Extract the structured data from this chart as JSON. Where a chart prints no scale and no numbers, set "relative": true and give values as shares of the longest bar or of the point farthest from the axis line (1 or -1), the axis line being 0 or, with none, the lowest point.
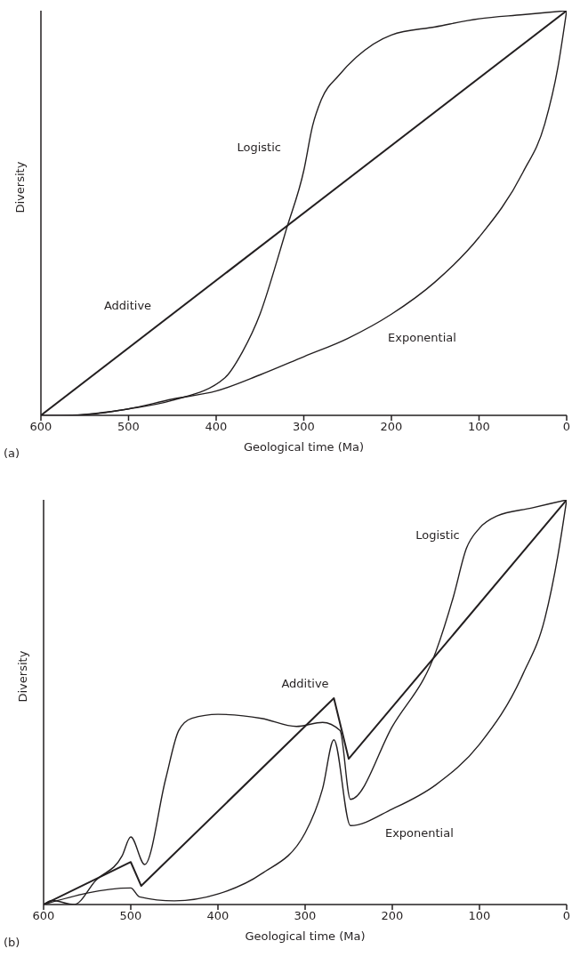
{
  "chart_data": [
    {
      "type": "line",
      "relative": true,
      "xlabel": "Geological time (Ma)",
      "ylabel": "Diversity",
      "xlim": [
        600,
        0
      ],
      "xticks": [
        600,
        500,
        400,
        300,
        200,
        100,
        0
      ],
      "marker": "none",
      "legend": false,
      "grid": false,
      "annotations": [
        "(a)"
      ],
      "series": [
        {
          "name": "Logistic",
          "color": "#231f20",
          "x": [
            600,
            550,
            500,
            450,
            390,
            370,
            350,
            330,
            320,
            300,
            290,
            280,
            260,
            240,
            200,
            150,
            100,
            50,
            0
          ],
          "values": [
            0,
            0.002,
            0.016,
            0.037,
            0.093,
            0.157,
            0.25,
            0.386,
            0.459,
            0.605,
            0.715,
            0.78,
            0.84,
            0.885,
            0.94,
            0.96,
            0.98,
            0.99,
            1
          ]
        },
        {
          "name": "Additive",
          "color": "#231f20",
          "x": [
            600,
            0
          ],
          "values": [
            0,
            1
          ]
        },
        {
          "name": "Exponential",
          "color": "#231f20",
          "x": [
            560,
            500,
            450,
            400,
            350,
            300,
            250,
            200,
            150,
            100,
            50,
            25,
            10,
            0
          ],
          "values": [
            0,
            0.016,
            0.04,
            0.06,
            0.1,
            0.145,
            0.19,
            0.25,
            0.33,
            0.44,
            0.6,
            0.72,
            0.86,
            1
          ]
        }
      ]
    },
    {
      "type": "line",
      "relative": true,
      "xlabel": "Geological time (Ma)",
      "ylabel": "Diversity",
      "xlim": [
        600,
        0
      ],
      "xticks": [
        600,
        500,
        400,
        300,
        200,
        100,
        0
      ],
      "marker": "none",
      "legend": false,
      "grid": false,
      "annotations": [
        "(b)"
      ],
      "series": [
        {
          "name": "Logistic",
          "color": "#231f20",
          "x": [
            600,
            590,
            565,
            540,
            510,
            500,
            484,
            460,
            445,
            430,
            400,
            350,
            310,
            280,
            260,
            248,
            200,
            150,
            130,
            115,
            100,
            80,
            40,
            0
          ],
          "values": [
            0,
            0.01,
            0,
            0.06,
            0.12,
            0.167,
            0.099,
            0.31,
            0.43,
            0.46,
            0.47,
            0.46,
            0.44,
            0.45,
            0.43,
            0.26,
            0.44,
            0.625,
            0.76,
            0.88,
            0.93,
            0.96,
            0.98,
            1
          ]
        },
        {
          "name": "Additive",
          "color": "#231f20",
          "x": [
            600,
            500,
            488,
            267,
            250,
            0
          ],
          "values": [
            0,
            0.105,
            0.046,
            0.51,
            0.36,
            1
          ]
        },
        {
          "name": "Exponential",
          "color": "#231f20",
          "x": [
            600,
            500,
            490,
            450,
            400,
            350,
            300,
            280,
            267,
            248,
            200,
            150,
            100,
            50,
            25,
            10,
            0
          ],
          "values": [
            0,
            0.041,
            0.019,
            0.009,
            0.026,
            0.076,
            0.177,
            0.286,
            0.407,
            0.195,
            0.236,
            0.296,
            0.396,
            0.57,
            0.707,
            0.863,
            1
          ]
        }
      ]
    }
  ]
}
